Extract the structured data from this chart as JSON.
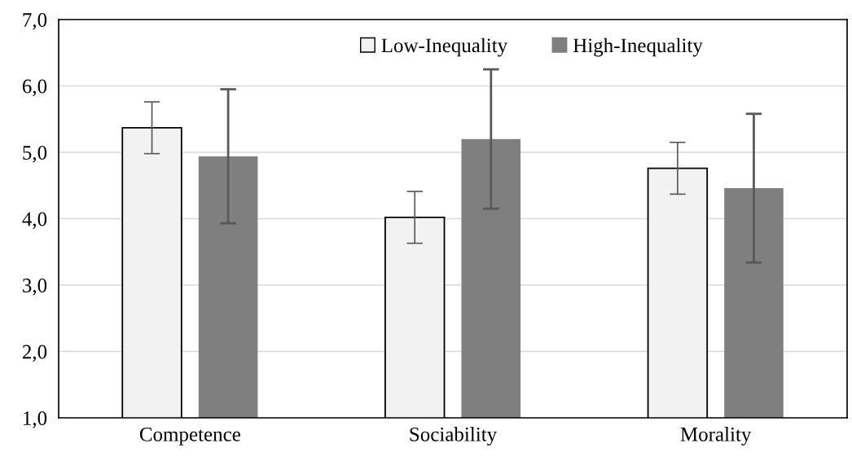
{
  "chart_data": {
    "type": "bar",
    "categories": [
      "Competence",
      "Sociability",
      "Morality"
    ],
    "series": [
      {
        "name": "Low-Inequality",
        "color": "#f2f2f2",
        "values": [
          5.37,
          4.02,
          4.76
        ],
        "errors": [
          0.39,
          0.39,
          0.39
        ]
      },
      {
        "name": "High-Inequality",
        "color": "#7f7f7f",
        "values": [
          4.94,
          5.2,
          4.46
        ],
        "errors": [
          1.01,
          1.05,
          1.12
        ]
      }
    ],
    "ylim": [
      1.0,
      7.0
    ],
    "yticks": [
      {
        "value": 1,
        "label": "1,0"
      },
      {
        "value": 2,
        "label": "2,0"
      },
      {
        "value": 3,
        "label": "3,0"
      },
      {
        "value": 4,
        "label": "4,0"
      },
      {
        "value": 5,
        "label": "5,0"
      },
      {
        "value": 6,
        "label": "6,0"
      },
      {
        "value": 7,
        "label": "7,0"
      }
    ],
    "grid": "y",
    "legend": "top"
  }
}
